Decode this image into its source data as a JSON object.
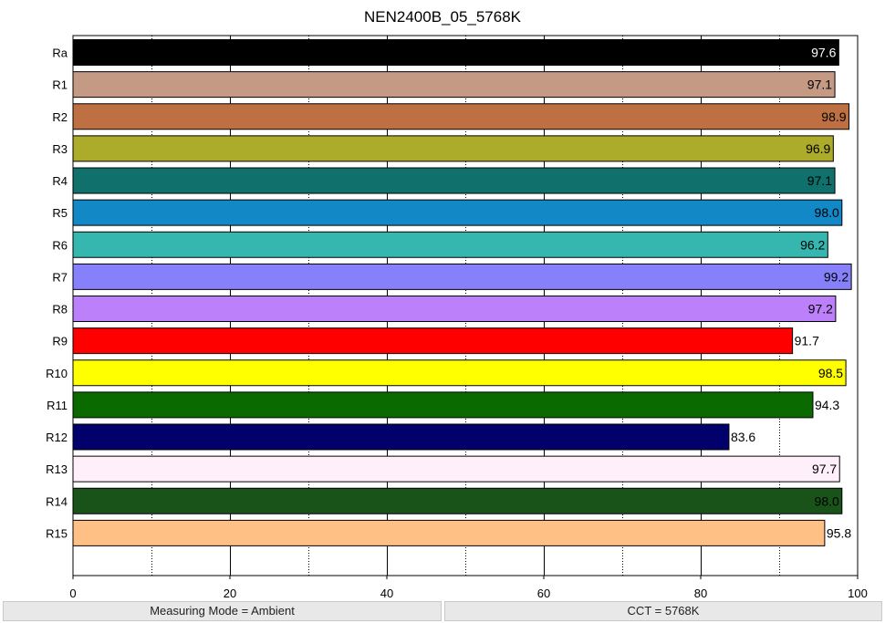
{
  "chart_data": {
    "type": "bar",
    "orientation": "horizontal",
    "title": "NEN2400B_05_5768K",
    "xlabel": "",
    "ylabel": "",
    "xlim": [
      0,
      100
    ],
    "x_ticks": [
      0,
      20,
      40,
      60,
      80,
      100
    ],
    "grid": "vertical dotted",
    "categories": [
      "Ra",
      "R1",
      "R2",
      "R3",
      "R4",
      "R5",
      "R6",
      "R7",
      "R8",
      "R9",
      "R10",
      "R11",
      "R12",
      "R13",
      "R14",
      "R15"
    ],
    "values": [
      97.6,
      97.1,
      98.9,
      96.9,
      97.1,
      98.0,
      96.2,
      99.2,
      97.2,
      91.7,
      98.5,
      94.3,
      83.6,
      97.7,
      98.0,
      95.8
    ],
    "value_labels": [
      "97.6",
      "97.1",
      "98.9",
      "96.9",
      "97.1",
      "98.0",
      "96.2",
      "99.2",
      "97.2",
      "91.7",
      "98.5",
      "94.3",
      "83.6",
      "97.7",
      "98.0",
      "95.8"
    ],
    "colors": [
      "#000000",
      "#c49a85",
      "#be7042",
      "#adab2a",
      "#0f706c",
      "#1288c7",
      "#35b7b0",
      "#8680fb",
      "#bd80fb",
      "#fe0000",
      "#ffff00",
      "#0a6a00",
      "#02006a",
      "#ffeffb",
      "#1a531a",
      "#ffc086"
    ]
  },
  "status": {
    "left": "Measuring Mode = Ambient",
    "right": "CCT = 5768K"
  }
}
